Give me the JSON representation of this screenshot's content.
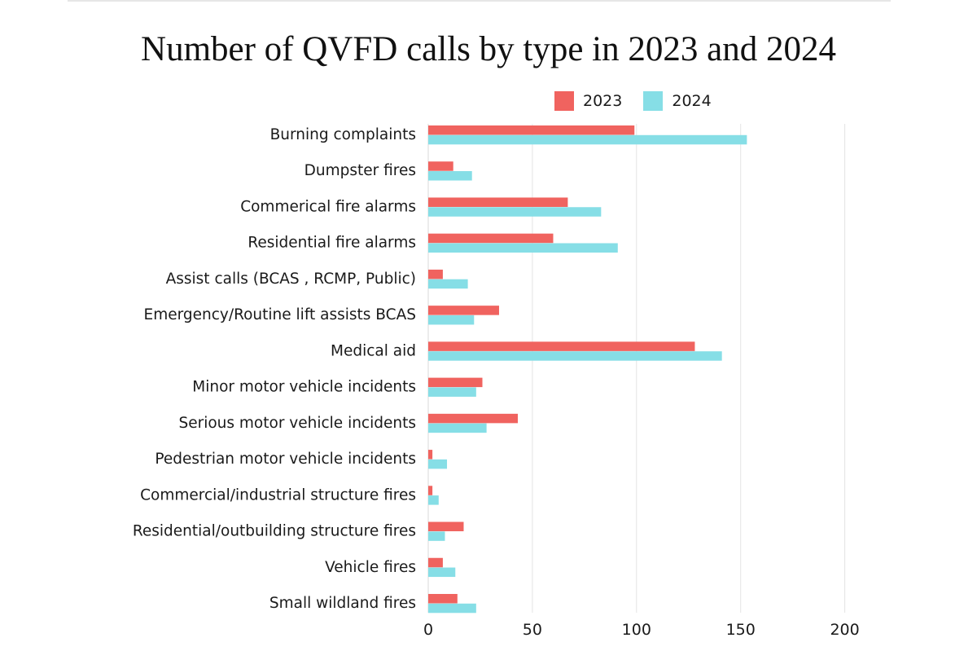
{
  "chart_data": {
    "type": "bar",
    "orientation": "horizontal",
    "title": "Number of QVFD calls by type in 2023 and 2024",
    "xlabel": "",
    "ylabel": "",
    "xlim": [
      0,
      200
    ],
    "xticks": [
      0,
      50,
      100,
      150,
      200
    ],
    "grid": true,
    "legend_position": "top-right",
    "categories": [
      "Burning complaints",
      "Dumpster fires",
      "Commerical fire alarms",
      "Residential fire alarms",
      "Assist calls (BCAS , RCMP, Public)",
      "Emergency/Routine lift assists BCAS",
      "Medical aid",
      "Minor motor vehicle incidents",
      "Serious motor vehicle incidents",
      "Pedestrian motor vehicle incidents",
      "Commercial/industrial structure fires",
      "Residential/outbuilding structure fires",
      "Vehicle fires",
      "Small wildland fires"
    ],
    "series": [
      {
        "name": "2023",
        "color": "#f0635f",
        "values": [
          99,
          12,
          67,
          60,
          7,
          34,
          128,
          26,
          43,
          2,
          2,
          17,
          7,
          14
        ]
      },
      {
        "name": "2024",
        "color": "#86dee6",
        "values": [
          153,
          21,
          83,
          91,
          19,
          22,
          141,
          23,
          28,
          9,
          5,
          8,
          13,
          23
        ]
      }
    ]
  }
}
